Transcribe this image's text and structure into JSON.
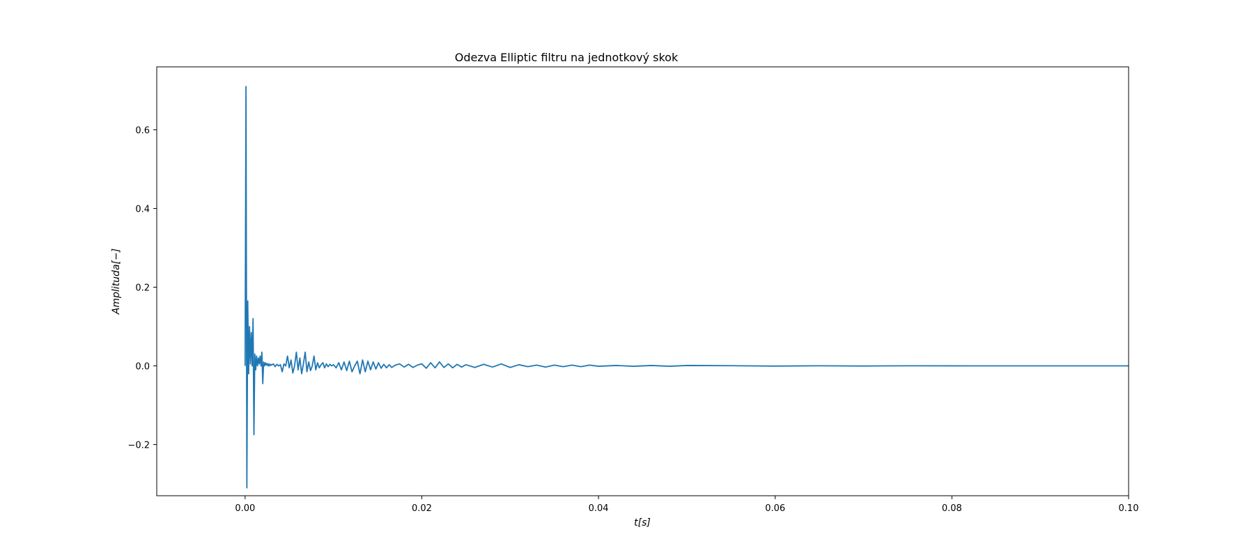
{
  "chart_data": {
    "type": "line",
    "title": "Odezva Elliptic filtru na jednotkový skok",
    "xlabel": "t[s]",
    "ylabel": "Amplituda[−]",
    "xlim": [
      -0.01,
      0.1
    ],
    "ylim": [
      -0.33,
      0.76
    ],
    "grid": false,
    "line_color": "#1f77b4",
    "x_ticks": [
      0.0,
      0.02,
      0.04,
      0.06,
      0.08,
      0.1
    ],
    "x_tick_labels": [
      "0.00",
      "0.02",
      "0.04",
      "0.06",
      "0.08",
      "0.10"
    ],
    "y_ticks": [
      -0.2,
      0.0,
      0.2,
      0.4,
      0.6
    ],
    "y_tick_labels": [
      "−0.2",
      "0.0",
      "0.2",
      "0.4",
      "0.6"
    ],
    "series": [
      {
        "x": [
          0.0,
          0.0001,
          0.0002,
          0.0003,
          0.0004,
          0.0005,
          0.0006,
          0.0007,
          0.0008,
          0.0009,
          0.001,
          0.0011,
          0.0012,
          0.0013,
          0.0014,
          0.0015,
          0.0016,
          0.0017,
          0.0018,
          0.0019,
          0.002,
          0.0021,
          0.0022,
          0.0023,
          0.0024,
          0.0025,
          0.0026,
          0.0027,
          0.0028,
          0.0029,
          0.003,
          0.0032,
          0.0034,
          0.0036,
          0.0038,
          0.004,
          0.0042,
          0.0044,
          0.0046,
          0.0048,
          0.005,
          0.0052,
          0.0054,
          0.0056,
          0.0058,
          0.006,
          0.0062,
          0.0064,
          0.0066,
          0.0068,
          0.007,
          0.0072,
          0.0074,
          0.0076,
          0.0078,
          0.008,
          0.0082,
          0.0084,
          0.0086,
          0.0088,
          0.009,
          0.0092,
          0.0094,
          0.0096,
          0.0098,
          0.01,
          0.0103,
          0.0106,
          0.0109,
          0.0112,
          0.0115,
          0.0118,
          0.0121,
          0.0124,
          0.0127,
          0.013,
          0.0133,
          0.0136,
          0.0139,
          0.0142,
          0.0145,
          0.0148,
          0.0151,
          0.0154,
          0.0157,
          0.016,
          0.0163,
          0.0166,
          0.017,
          0.0175,
          0.018,
          0.0185,
          0.019,
          0.0195,
          0.02,
          0.0205,
          0.021,
          0.0215,
          0.022,
          0.0225,
          0.023,
          0.0235,
          0.024,
          0.0245,
          0.025,
          0.026,
          0.027,
          0.028,
          0.029,
          0.03,
          0.031,
          0.032,
          0.033,
          0.034,
          0.035,
          0.036,
          0.037,
          0.038,
          0.039,
          0.04,
          0.042,
          0.044,
          0.046,
          0.048,
          0.05,
          0.055,
          0.06,
          0.065,
          0.07,
          0.075,
          0.08,
          0.085,
          0.09,
          0.095,
          0.1
        ],
        "y": [
          0.0,
          0.71,
          -0.31,
          0.165,
          -0.02,
          0.1,
          0.005,
          0.085,
          0.0,
          0.12,
          -0.175,
          0.03,
          -0.01,
          0.025,
          0.0,
          0.02,
          0.005,
          0.025,
          0.0,
          0.035,
          -0.045,
          0.01,
          0.0,
          0.008,
          0.002,
          0.006,
          0.0,
          0.005,
          0.0,
          0.004,
          0.002,
          0.005,
          -0.002,
          0.004,
          0.0,
          0.003,
          -0.015,
          0.005,
          0.0,
          0.025,
          -0.005,
          0.015,
          -0.018,
          0.0,
          0.035,
          -0.01,
          0.02,
          -0.02,
          0.005,
          0.035,
          -0.015,
          0.01,
          -0.012,
          0.0,
          0.025,
          -0.01,
          0.008,
          -0.005,
          0.003,
          0.008,
          -0.005,
          0.005,
          -0.002,
          0.004,
          0.0,
          0.003,
          -0.005,
          0.008,
          -0.01,
          0.01,
          -0.012,
          0.012,
          -0.015,
          0.0,
          0.012,
          -0.02,
          0.015,
          -0.015,
          0.012,
          -0.01,
          0.01,
          -0.008,
          0.008,
          -0.006,
          0.004,
          -0.005,
          0.003,
          -0.004,
          0.002,
          0.005,
          -0.003,
          0.004,
          -0.004,
          0.002,
          0.005,
          -0.006,
          0.008,
          -0.005,
          0.01,
          -0.004,
          0.005,
          -0.005,
          0.004,
          -0.003,
          0.003,
          -0.004,
          0.004,
          -0.003,
          0.005,
          -0.004,
          0.003,
          -0.002,
          0.002,
          -0.003,
          0.002,
          -0.002,
          0.002,
          -0.002,
          0.002,
          -0.001,
          0.001,
          -0.001,
          0.001,
          -0.001,
          0.001,
          0.0005,
          -0.0005,
          0.0003,
          -0.0003,
          0.0002,
          0.0001,
          0.0,
          0.0,
          0.0,
          0.0
        ]
      }
    ]
  }
}
